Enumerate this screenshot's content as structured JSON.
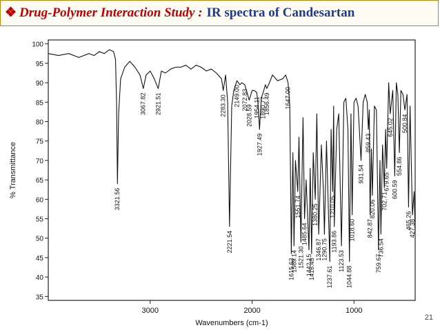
{
  "header": {
    "bullet": "❖",
    "lead": "Drug-Polymer Interaction Study :",
    "rest": "IR spectra of Candesartan"
  },
  "slide_number": "21",
  "chart_data": {
    "type": "line",
    "title": "",
    "xlabel": "Wavenumbers (cm-1)",
    "ylabel": "% Transmittance",
    "xlim": [
      4000,
      400
    ],
    "ylim": [
      34,
      101
    ],
    "xticks": [
      3000,
      2000,
      1000
    ],
    "yticks": [
      35,
      40,
      45,
      50,
      55,
      60,
      65,
      70,
      75,
      80,
      85,
      90,
      95,
      100
    ],
    "grid": false,
    "series": [
      {
        "x": [
          4000,
          3900,
          3800,
          3700,
          3600,
          3550,
          3500,
          3450,
          3400,
          3360,
          3340,
          3330,
          3321.56,
          3310,
          3290,
          3250,
          3200,
          3150,
          3100,
          3067.82,
          3040,
          3000,
          2960,
          2921.51,
          2890,
          2850,
          2800,
          2750,
          2700,
          2650,
          2600,
          2550,
          2500,
          2450,
          2400,
          2350,
          2300,
          2283.3,
          2260,
          2240,
          2221.54,
          2200,
          2180,
          2149,
          2120,
          2100,
          2072.83,
          2050,
          2028.59,
          2000,
          1980,
          1954.11,
          1940,
          1927.49,
          1910,
          1890.77,
          1870,
          1856.49,
          1830,
          1800,
          1750,
          1700,
          1670,
          1647,
          1630,
          1615.63,
          1600,
          1589.14,
          1575,
          1551.74,
          1540,
          1521.3,
          1500,
          1485.64,
          1470,
          1442.15,
          1430,
          1416.45,
          1400,
          1380.25,
          1365,
          1346.87,
          1320,
          1300,
          1290.75,
          1270,
          1237.61,
          1225,
          1210.05,
          1200,
          1193.86,
          1170,
          1150,
          1123.53,
          1100,
          1080,
          1060,
          1044.88,
          1030,
          1018.6,
          1000,
          980,
          960,
          931.54,
          910,
          890,
          870,
          859.43,
          850,
          842.87,
          830,
          820.06,
          800,
          780,
          759.67,
          745,
          736.54,
          720,
          702.71,
          690,
          679.65,
          660,
          645.02,
          620,
          600.59,
          585,
          570,
          554.86,
          540,
          520,
          500.84,
          480,
          465.26,
          450,
          427.38,
          410,
          400
        ],
        "y": [
          97.5,
          97,
          97.5,
          96.5,
          97.5,
          97,
          98,
          97.5,
          98.5,
          98,
          96,
          85,
          64,
          82,
          91,
          94,
          95.5,
          94,
          92,
          88.5,
          92,
          93,
          91,
          88.5,
          93,
          92.5,
          93.5,
          94,
          94,
          94.5,
          93.5,
          94.5,
          94,
          93,
          93.5,
          92.5,
          91,
          88,
          92,
          85,
          53,
          84,
          88,
          90.5,
          89.5,
          90,
          89.5,
          87.5,
          85.5,
          88,
          88,
          87.5,
          84,
          78,
          86,
          87.5,
          89.5,
          88.5,
          90,
          92,
          90.5,
          91,
          92,
          90,
          84,
          46,
          72,
          48,
          70,
          62,
          76,
          49,
          81,
          55,
          65,
          47,
          68,
          46,
          72,
          60,
          82,
          51,
          74,
          62,
          51,
          75,
          44,
          78,
          62,
          84,
          53,
          78,
          82,
          48,
          85,
          86,
          78,
          44,
          82,
          56,
          85,
          86,
          84,
          70,
          85,
          87,
          85,
          78,
          83,
          56,
          73,
          61,
          84,
          83,
          47,
          70,
          51,
          74,
          63,
          78,
          68,
          90,
          82,
          88,
          66,
          90,
          87,
          72,
          88,
          87,
          83,
          87,
          58,
          84,
          56,
          62,
          52
        ]
      }
    ],
    "annotations": [
      {
        "label": "3321.56",
        "x": 3321.56,
        "y": 64
      },
      {
        "label": "3067.82",
        "x": 3067.82,
        "y": 88.5
      },
      {
        "label": "2921.51",
        "x": 2921.51,
        "y": 88.5
      },
      {
        "label": "2283.30",
        "x": 2283.3,
        "y": 88
      },
      {
        "label": "2221.54",
        "x": 2221.54,
        "y": 53
      },
      {
        "label": "2149.00",
        "x": 2149,
        "y": 90.5
      },
      {
        "label": "2072.83",
        "x": 2072.83,
        "y": 89.5
      },
      {
        "label": "2028.59",
        "x": 2028.59,
        "y": 85.5
      },
      {
        "label": "1954.11",
        "x": 1954.11,
        "y": 87.5
      },
      {
        "label": "1927.49",
        "x": 1927.49,
        "y": 78
      },
      {
        "label": "1890.77",
        "x": 1890.77,
        "y": 87.5
      },
      {
        "label": "1856.49",
        "x": 1856.49,
        "y": 88.5
      },
      {
        "label": "1647.00",
        "x": 1647,
        "y": 90
      },
      {
        "label": "1615.63",
        "x": 1615.63,
        "y": 46
      },
      {
        "label": "1589.14",
        "x": 1589.14,
        "y": 48
      },
      {
        "label": "1551.74",
        "x": 1551.74,
        "y": 62
      },
      {
        "label": "1521.30",
        "x": 1521.3,
        "y": 49
      },
      {
        "label": "1485.64",
        "x": 1485.64,
        "y": 55
      },
      {
        "label": "1442.15",
        "x": 1442.15,
        "y": 47
      },
      {
        "label": "1416.45",
        "x": 1416.45,
        "y": 46
      },
      {
        "label": "1380.25",
        "x": 1380.25,
        "y": 60
      },
      {
        "label": "1346.87",
        "x": 1346.87,
        "y": 51
      },
      {
        "label": "1290.75",
        "x": 1290.75,
        "y": 51
      },
      {
        "label": "1237.61",
        "x": 1237.61,
        "y": 44
      },
      {
        "label": "1210.05",
        "x": 1210.05,
        "y": 62
      },
      {
        "label": "1193.86",
        "x": 1193.86,
        "y": 53
      },
      {
        "label": "1123.53",
        "x": 1123.53,
        "y": 48
      },
      {
        "label": "1044.88",
        "x": 1044.88,
        "y": 44
      },
      {
        "label": "1018.60",
        "x": 1018.6,
        "y": 56
      },
      {
        "label": "931.54",
        "x": 931.54,
        "y": 70
      },
      {
        "label": "859.43",
        "x": 859.43,
        "y": 78
      },
      {
        "label": "842.87",
        "x": 842.87,
        "y": 56
      },
      {
        "label": "820.06",
        "x": 820.06,
        "y": 61
      },
      {
        "label": "759.67",
        "x": 759.67,
        "y": 47
      },
      {
        "label": "736.54",
        "x": 736.54,
        "y": 51
      },
      {
        "label": "702.71",
        "x": 702.71,
        "y": 63
      },
      {
        "label": "679.65",
        "x": 679.65,
        "y": 68
      },
      {
        "label": "645.02",
        "x": 645.02,
        "y": 82
      },
      {
        "label": "600.59",
        "x": 600.59,
        "y": 66
      },
      {
        "label": "554.86",
        "x": 554.86,
        "y": 72
      },
      {
        "label": "500.84",
        "x": 500.84,
        "y": 83
      },
      {
        "label": "465.26",
        "x": 465.26,
        "y": 58
      },
      {
        "label": "427.38",
        "x": 427.38,
        "y": 56
      }
    ]
  }
}
